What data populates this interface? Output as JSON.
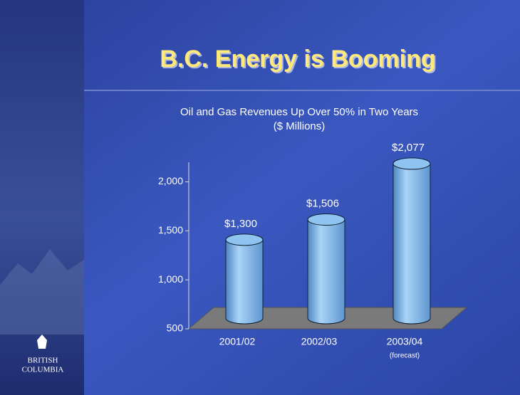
{
  "chart_data": {
    "type": "bar",
    "title": "B.C. Energy is Booming",
    "subtitle": [
      "Oil and Gas Revenues Up Over 50% in Two Years",
      "($ Millions)"
    ],
    "categories": [
      "2001/02",
      "2002/03",
      "2003/04"
    ],
    "category_notes": [
      null,
      null,
      "(forecast)"
    ],
    "values": [
      1300,
      1506,
      2077
    ],
    "value_labels": [
      "$1,300",
      "$1,506",
      "$2,077"
    ],
    "color": "#8fc3f0",
    "ylim": [
      500,
      2200
    ],
    "yticks": [
      500,
      {
        "value": 1000,
        "label": "1,000"
      },
      {
        "value": 1500,
        "label": "1,500"
      },
      {
        "value": 2000,
        "label": "2,000"
      }
    ]
  },
  "logo": {
    "line1": "BRITISH",
    "line2": "COLUMBIA"
  }
}
